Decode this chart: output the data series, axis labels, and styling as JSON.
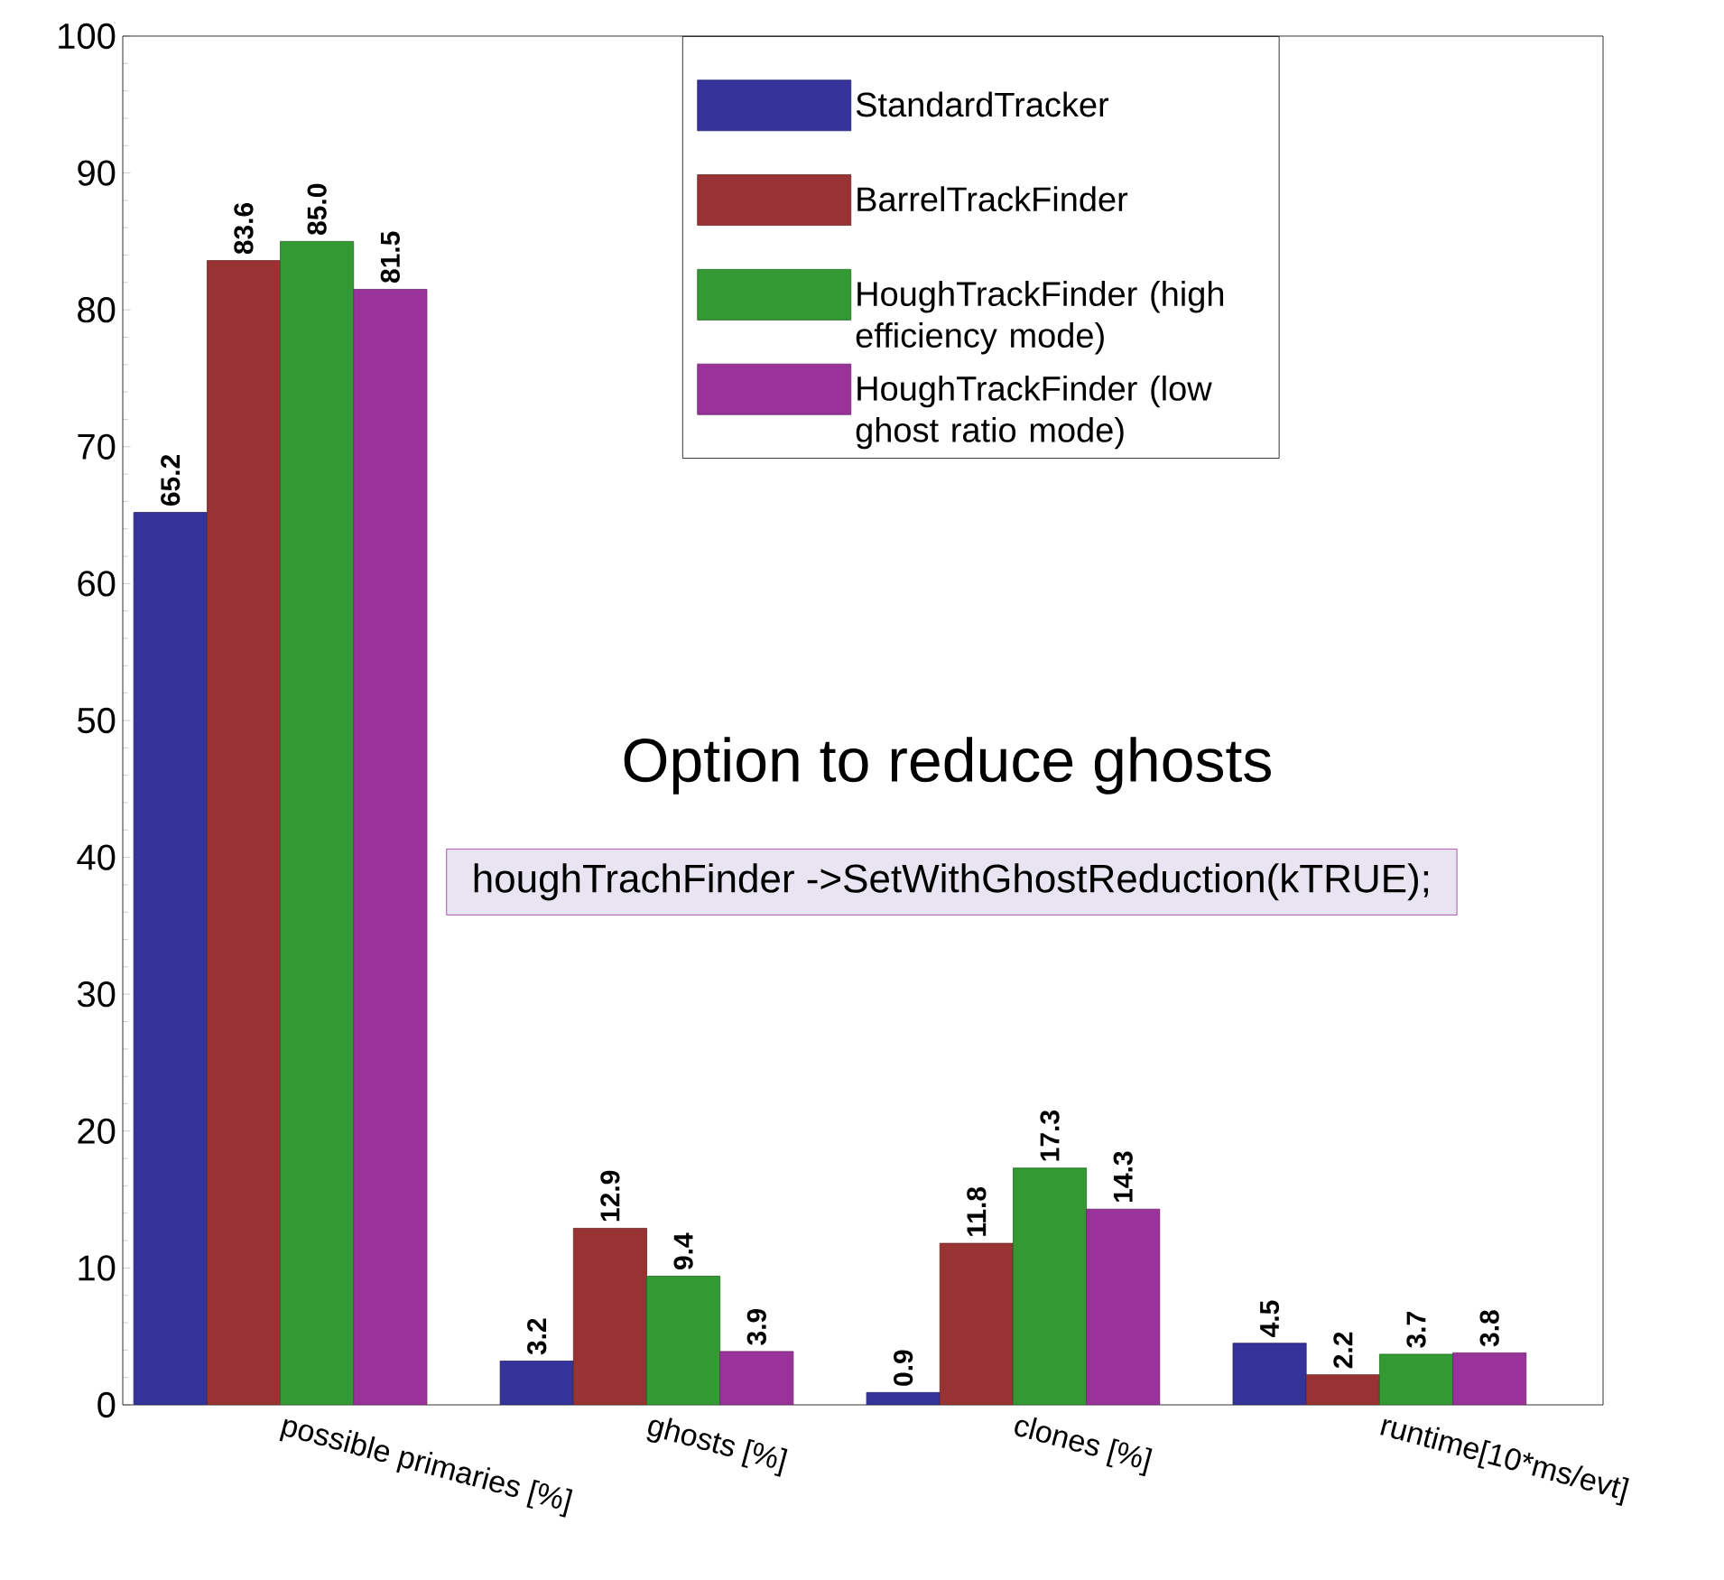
{
  "chart_data": {
    "type": "bar",
    "categories": [
      "possible primaries [%]",
      "ghosts [%]",
      "clones [%]",
      "runtime[10*ms/evt]"
    ],
    "series": [
      {
        "name": "StandardTracker",
        "color": "#333399",
        "values": [
          65.2,
          3.2,
          0.9,
          4.5
        ],
        "value_labels": [
          "65.2",
          "3.2",
          "0.9",
          "4.5"
        ]
      },
      {
        "name": "BarrelTrackFinder",
        "color": "#993333",
        "values": [
          83.6,
          12.9,
          11.8,
          2.2
        ],
        "value_labels": [
          "83.6",
          "12.9",
          "11.8",
          "2.2"
        ]
      },
      {
        "name": "HoughTrackFinder (high efficiency mode)",
        "color": "#339933",
        "values": [
          85.0,
          9.4,
          17.3,
          3.7
        ],
        "value_labels": [
          "85.0",
          "9.4",
          "17.3",
          "3.7"
        ]
      },
      {
        "name": "HoughTrackFinder (low ghost ratio mode)",
        "color": "#993399",
        "values": [
          81.5,
          3.9,
          14.3,
          3.8
        ],
        "value_labels": [
          "81.5",
          "3.9",
          "14.3",
          "3.8"
        ]
      }
    ],
    "ylim": [
      0,
      100
    ],
    "yticks": [
      0,
      10,
      20,
      30,
      40,
      50,
      60,
      70,
      80,
      90,
      100
    ],
    "legend": "top right",
    "annotations": [
      "Option to reduce ghosts",
      "houghTrachFinder ->SetWithGhostReduction(kTRUE);"
    ]
  }
}
